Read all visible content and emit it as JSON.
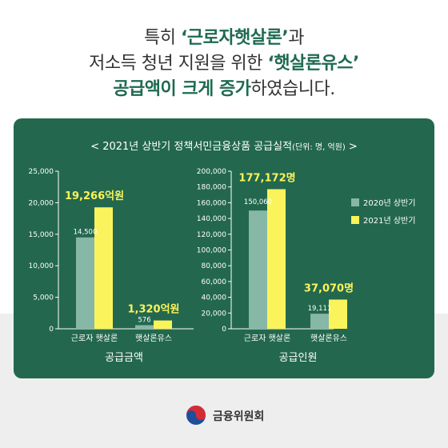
{
  "headline": {
    "line1_pre": "특히 ",
    "line1_hl": "‘근로자햇살론’",
    "line1_post": "과",
    "line2_pre": "저소득 청년 지원을 위한 ",
    "line2_hl": "‘햇살론유스’",
    "line3_hl": "공급액이 크게 증가",
    "line3_post": "하였습니다."
  },
  "card": {
    "title": "< 2021년 상반기 정책서민금융상품 공급실적",
    "unit": "(단위: 명, 억원)",
    "title_end": " >"
  },
  "colors": {
    "card": "#23684e",
    "bar2020": "#87b7a7",
    "bar2021": "#fbf35c",
    "highlight": "#1e6a4f"
  },
  "legend": [
    "2020년 상반기",
    "2021년 상반기"
  ],
  "chart_data": [
    {
      "type": "bar",
      "title": "공급금액",
      "categories": [
        "근로자 햇살론",
        "햇살론유스"
      ],
      "series": [
        {
          "name": "2020년 상반기",
          "values": [
            14500,
            576
          ]
        },
        {
          "name": "2021년 상반기",
          "values": [
            19266,
            1320
          ]
        }
      ],
      "ylim": [
        0,
        25000
      ],
      "yticks": [
        "0",
        "5,000",
        "10,000",
        "15,000",
        "20,000",
        "25,000"
      ],
      "labels_2020": [
        "14,500",
        "576"
      ],
      "labels_2021": [
        "19,266억원",
        "1,320억원"
      ]
    },
    {
      "type": "bar",
      "title": "공급인원",
      "categories": [
        "근로자 햇살론",
        "햇살론유스"
      ],
      "series": [
        {
          "name": "2020년 상반기",
          "values": [
            150060,
            19111
          ]
        },
        {
          "name": "2021년 상반기",
          "values": [
            177172,
            37070
          ]
        }
      ],
      "ylim": [
        0,
        200000
      ],
      "yticks": [
        "0",
        "20,000",
        "40,000",
        "60,000",
        "80,000",
        "100,000",
        "120,000",
        "140,000",
        "160,000",
        "180,000",
        "200,000"
      ],
      "labels_2020": [
        "150,060",
        "19,111"
      ],
      "labels_2021": [
        "177,172명",
        "37,070명"
      ]
    }
  ],
  "org": {
    "name": "금융위원회"
  }
}
